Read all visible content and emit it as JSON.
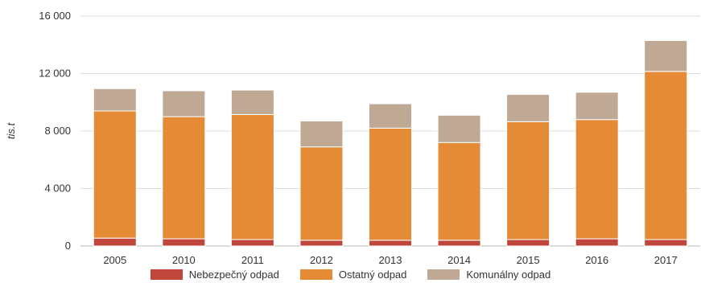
{
  "chart_data": {
    "type": "bar",
    "stacked": true,
    "title": "",
    "xlabel": "",
    "ylabel": "tis.t",
    "ylim": [
      0,
      16000
    ],
    "yticks": [
      0,
      4000,
      8000,
      12000,
      16000
    ],
    "ytick_labels": [
      "0",
      "4 000",
      "8 000",
      "12 000",
      "16 000"
    ],
    "grid": true,
    "legend_position": "bottom",
    "categories": [
      "2005",
      "2010",
      "2011",
      "2012",
      "2013",
      "2014",
      "2015",
      "2016",
      "2017"
    ],
    "series": [
      {
        "name": "Nebezpečný odpad",
        "color": "#c0453a",
        "values": [
          550,
          500,
          450,
          400,
          400,
          400,
          450,
          500,
          450
        ]
      },
      {
        "name": "Ostatný odpad",
        "color": "#e58a35",
        "values": [
          8850,
          8500,
          8700,
          6500,
          7800,
          6800,
          8200,
          8300,
          11700
        ]
      },
      {
        "name": "Komunálny odpad",
        "color": "#bfa894",
        "values": [
          1550,
          1800,
          1700,
          1800,
          1700,
          1900,
          1900,
          1900,
          2150
        ]
      }
    ]
  }
}
